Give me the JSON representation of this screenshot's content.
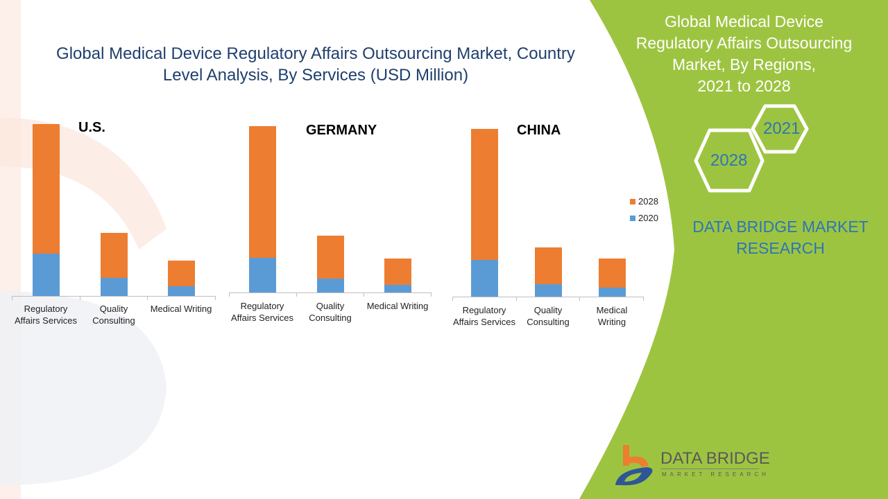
{
  "title": "Global Medical Device Regulatory Affairs Outsourcing Market, Country Level Analysis, By Services (USD Million)",
  "side_panel": {
    "title_lines": [
      "Global Medical Device",
      "Regulatory Affairs Outsourcing",
      "Market, By Regions,",
      "2021 to 2028"
    ],
    "hex_labels": [
      "2021",
      "2028"
    ],
    "brand_lines": [
      "DATA BRIDGE MARKET",
      "RESEARCH"
    ]
  },
  "logo": {
    "name": "DATA BRIDGE",
    "sub": "MARKET RESEARCH"
  },
  "colors": {
    "series_2028": "#ed7d31",
    "series_2020": "#5b9bd5",
    "panel": "#9dc441",
    "title": "#1f3f6e"
  },
  "chart_data": [
    {
      "type": "bar",
      "stacked": true,
      "title": "U.S.",
      "categories": [
        [
          "Regulatory",
          "Affairs Services"
        ],
        [
          "Quality",
          "Consulting"
        ],
        [
          "Medical Writing"
        ]
      ],
      "series": [
        {
          "name": "2020",
          "values": [
            61,
            26,
            14
          ]
        },
        {
          "name": "2028",
          "values": [
            187,
            65,
            37
          ]
        }
      ],
      "ylabel": "",
      "xlabel": "",
      "grid": false
    },
    {
      "type": "bar",
      "stacked": true,
      "title": "GERMANY",
      "categories": [
        [
          "Regulatory",
          "Affairs Services"
        ],
        [
          "Quality",
          "Consulting"
        ],
        [
          "Medical Writing"
        ]
      ],
      "series": [
        {
          "name": "2020",
          "values": [
            50,
            20,
            11
          ]
        },
        {
          "name": "2028",
          "values": [
            190,
            62,
            38
          ]
        }
      ],
      "ylabel": "",
      "xlabel": "",
      "grid": false
    },
    {
      "type": "bar",
      "stacked": true,
      "title": "CHINA",
      "categories": [
        [
          "Regulatory",
          "Affairs Services"
        ],
        [
          "Quality",
          "Consulting"
        ],
        [
          "Medical",
          "Writing"
        ]
      ],
      "series": [
        {
          "name": "2020",
          "values": [
            53,
            18,
            13
          ]
        },
        {
          "name": "2028",
          "values": [
            189,
            53,
            42
          ]
        }
      ],
      "ylabel": "",
      "xlabel": "",
      "grid": false,
      "legend": {
        "placement": "right",
        "entries": [
          "2028",
          "2020"
        ]
      }
    }
  ]
}
